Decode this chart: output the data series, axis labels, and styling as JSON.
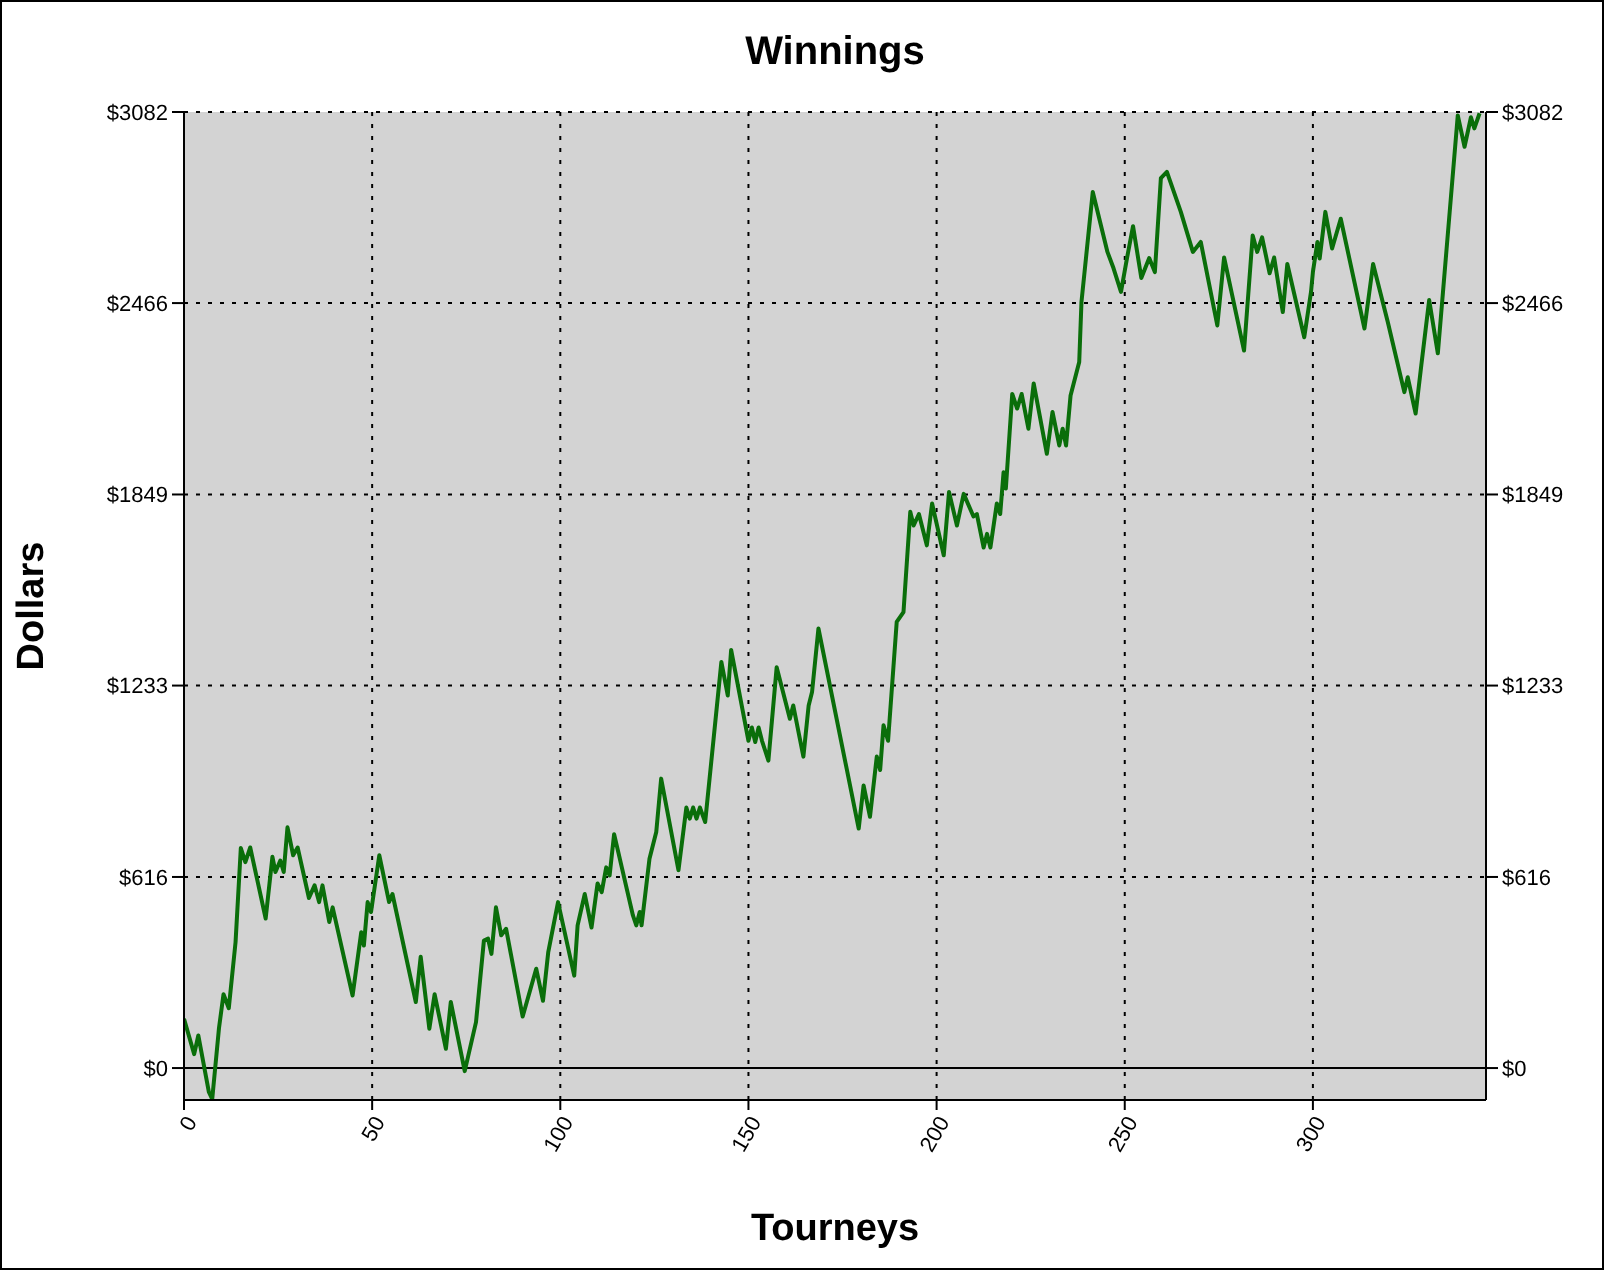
{
  "chart_data": {
    "type": "line",
    "title": "Winnings",
    "xlabel": "Tourneys",
    "ylabel": "Dollars",
    "xlim": [
      0,
      346
    ],
    "xticks": [
      0,
      50,
      100,
      150,
      200,
      250,
      300
    ],
    "ylim": [
      -103,
      3082
    ],
    "yticks": [
      {
        "value": 0,
        "label": "$0"
      },
      {
        "value": 616,
        "label": "$616"
      },
      {
        "value": 1233,
        "label": "$1233"
      },
      {
        "value": 1849,
        "label": "$1849"
      },
      {
        "value": 2466,
        "label": "$2466"
      },
      {
        "value": 3082,
        "label": "$3082"
      }
    ],
    "y2lim": [
      -103,
      3082
    ],
    "y2ticks": [
      {
        "value": 0,
        "label": "$0"
      },
      {
        "value": 616,
        "label": "$616"
      },
      {
        "value": 1233,
        "label": "$1233"
      },
      {
        "value": 1849,
        "label": "$1849"
      },
      {
        "value": 2466,
        "label": "$2466"
      },
      {
        "value": 3082,
        "label": "$3082"
      }
    ],
    "grid": true,
    "marker": "none",
    "line_style": "solid",
    "ref_lines": [
      {
        "axis": "y",
        "value": 0,
        "color": "#000000",
        "line_style": "solid"
      }
    ],
    "series": [
      {
        "color": "#0a6e0a",
        "x": [
          0,
          2.7,
          3.8,
          6.6,
          7.5,
          9.3,
          10.5,
          11.9,
          13.7,
          15.1,
          16.3,
          17.6,
          21.7,
          23.5,
          24.3,
          25.6,
          26.5,
          27.5,
          29,
          30.2,
          33.2,
          34.7,
          35.9,
          36.8,
          38.6,
          39.5,
          44.8,
          47.1,
          47.8,
          48.8,
          49.7,
          51.9,
          54.5,
          55.4,
          61.6,
          62.9,
          65.2,
          66.6,
          69.6,
          70.9,
          74.6,
          77.6,
          79.7,
          80.8,
          81.7,
          82.9,
          84.3,
          85.6,
          90,
          93.6,
          95.4,
          96.8,
          99.4,
          103.7,
          104.6,
          106.5,
          108.3,
          109.9,
          111,
          112.2,
          113.1,
          114.3,
          119.3,
          120.2,
          121.1,
          121.6,
          123.7,
          125.5,
          126.8,
          131.4,
          133.5,
          134.4,
          135.3,
          136.2,
          137.1,
          138.5,
          142.8,
          144.5,
          145.4,
          150,
          150.9,
          151.8,
          152.7,
          153.6,
          155.3,
          157.5,
          161,
          161.9,
          164.6,
          166,
          166.9,
          168.6,
          176.1,
          179.3,
          180.6,
          182.3,
          184.1,
          185,
          185.9,
          187.1,
          189.4,
          191.2,
          193,
          193.9,
          195.3,
          197.4,
          198.8,
          201.9,
          203.3,
          205.4,
          207.2,
          209.8,
          210.7,
          212.5,
          213.4,
          214.3,
          216,
          216.9,
          217.8,
          218.4,
          220.1,
          221.4,
          222.6,
          224.4,
          225.8,
          229.3,
          230.8,
          232.6,
          233.5,
          234.4,
          235.6,
          237.9,
          238.5,
          241.5,
          245.4,
          247,
          249,
          250.6,
          252.2,
          254.4,
          256.5,
          258,
          259.6,
          261.2,
          264.9,
          268.1,
          270.2,
          274.6,
          276.4,
          281.7,
          284,
          285.2,
          286.5,
          288.5,
          289.7,
          292,
          293.2,
          297.7,
          299.5,
          300,
          301.2,
          301.8,
          303.3,
          305.1,
          307.4,
          313.7,
          316,
          319.9,
          324.3,
          325.2,
          327.3,
          328.8,
          330.9,
          333.2,
          338.5,
          340.3,
          342,
          342.9,
          344.3
        ],
        "values": [
          159,
          45,
          105,
          -77,
          -100,
          129,
          238,
          193,
          406,
          709,
          664,
          711,
          482,
          681,
          632,
          669,
          632,
          776,
          686,
          711,
          548,
          589,
          535,
          589,
          471,
          518,
          234,
          438,
          395,
          535,
          503,
          686,
          535,
          561,
          213,
          359,
          127,
          238,
          62,
          213,
          -10,
          148,
          411,
          417,
          368,
          518,
          428,
          449,
          166,
          320,
          217,
          374,
          535,
          298,
          460,
          561,
          453,
          595,
          567,
          647,
          621,
          754,
          492,
          460,
          503,
          460,
          675,
          761,
          933,
          638,
          840,
          804,
          840,
          804,
          840,
          793,
          1309,
          1201,
          1348,
          1055,
          1098,
          1051,
          1098,
          1055,
          991,
          1292,
          1126,
          1169,
          1004,
          1169,
          1212,
          1417,
          965,
          772,
          911,
          810,
          1004,
          961,
          1105,
          1055,
          1438,
          1470,
          1793,
          1749,
          1786,
          1685,
          1820,
          1653,
          1857,
          1749,
          1851,
          1778,
          1786,
          1678,
          1722,
          1678,
          1820,
          1786,
          1921,
          1868,
          2173,
          2126,
          2173,
          2061,
          2207,
          1980,
          2115,
          2007,
          2061,
          2007,
          2168,
          2276,
          2470,
          2824,
          2631,
          2579,
          2502,
          2611,
          2714,
          2547,
          2611,
          2566,
          2869,
          2889,
          2760,
          2631,
          2663,
          2394,
          2613,
          2313,
          2684,
          2631,
          2678,
          2562,
          2613,
          2437,
          2592,
          2356,
          2502,
          2566,
          2663,
          2610,
          2760,
          2642,
          2738,
          2384,
          2592,
          2405,
          2179,
          2227,
          2110,
          2265,
          2476,
          2304,
          3071,
          2970,
          3065,
          3029,
          3078
        ]
      }
    ]
  }
}
